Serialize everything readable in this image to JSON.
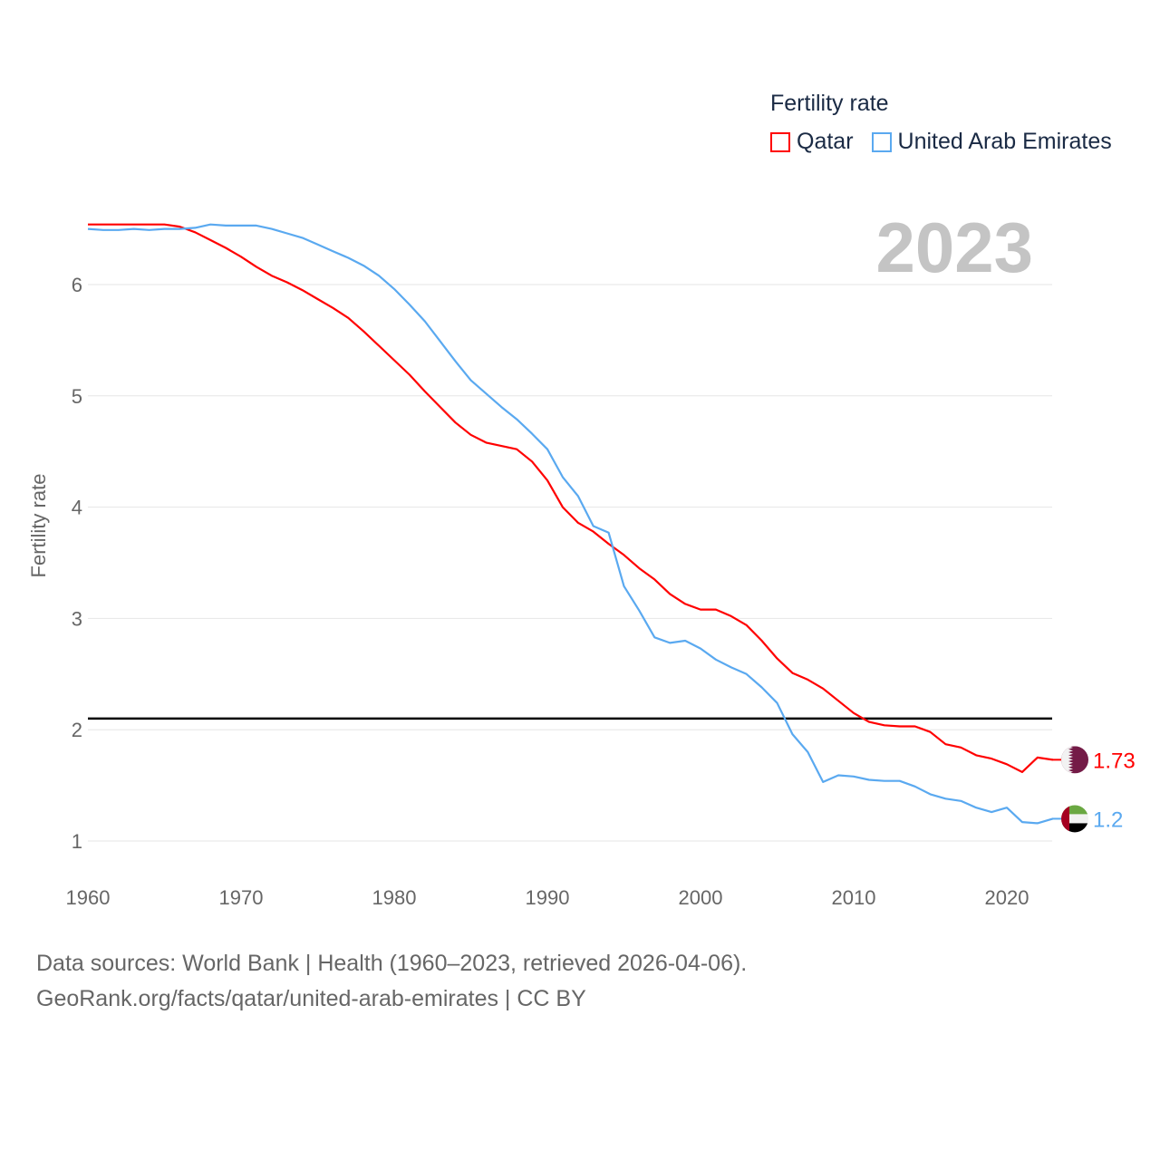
{
  "chart_data": {
    "type": "line",
    "title": "Fertility rate",
    "xlabel": "",
    "ylabel": "Fertility rate",
    "xlim": [
      1960,
      2023
    ],
    "ylim": [
      0.7,
      6.9
    ],
    "x_ticks": [
      1960,
      1970,
      1980,
      1990,
      2000,
      2010,
      2020
    ],
    "y_ticks": [
      1,
      2,
      3,
      4,
      5,
      6
    ],
    "grid": true,
    "legend_position": "top-right",
    "reference_line": 2.1,
    "current_year_label": "2023",
    "x": [
      1960,
      1961,
      1962,
      1963,
      1964,
      1965,
      1966,
      1967,
      1968,
      1969,
      1970,
      1971,
      1972,
      1973,
      1974,
      1975,
      1976,
      1977,
      1978,
      1979,
      1980,
      1981,
      1982,
      1983,
      1984,
      1985,
      1986,
      1987,
      1988,
      1989,
      1990,
      1991,
      1992,
      1993,
      1994,
      1995,
      1996,
      1997,
      1998,
      1999,
      2000,
      2001,
      2002,
      2003,
      2004,
      2005,
      2006,
      2007,
      2008,
      2009,
      2010,
      2011,
      2012,
      2013,
      2014,
      2015,
      2016,
      2017,
      2018,
      2019,
      2020,
      2021,
      2022,
      2023
    ],
    "series": [
      {
        "name": "Qatar",
        "color": "#ff0000",
        "end_label": "1.73",
        "flag": "qatar-flag",
        "values": [
          6.54,
          6.54,
          6.54,
          6.54,
          6.54,
          6.54,
          6.52,
          6.47,
          6.4,
          6.33,
          6.25,
          6.16,
          6.08,
          6.02,
          5.95,
          5.87,
          5.79,
          5.7,
          5.58,
          5.45,
          5.32,
          5.19,
          5.04,
          4.9,
          4.76,
          4.65,
          4.58,
          4.55,
          4.52,
          4.41,
          4.24,
          4.0,
          3.86,
          3.78,
          3.67,
          3.57,
          3.45,
          3.35,
          3.22,
          3.13,
          3.08,
          3.08,
          3.02,
          2.94,
          2.8,
          2.64,
          2.51,
          2.45,
          2.37,
          2.26,
          2.15,
          2.07,
          2.04,
          2.03,
          2.03,
          1.98,
          1.87,
          1.84,
          1.77,
          1.74,
          1.69,
          1.62,
          1.75,
          1.73
        ]
      },
      {
        "name": "United Arab Emirates",
        "color": "#5aa9f0",
        "end_label": "1.2",
        "flag": "uae-flag",
        "values": [
          6.5,
          6.49,
          6.49,
          6.5,
          6.49,
          6.5,
          6.5,
          6.51,
          6.54,
          6.53,
          6.53,
          6.53,
          6.5,
          6.46,
          6.42,
          6.36,
          6.3,
          6.24,
          6.17,
          6.08,
          5.96,
          5.82,
          5.67,
          5.49,
          5.31,
          5.14,
          5.02,
          4.9,
          4.79,
          4.66,
          4.52,
          4.27,
          4.1,
          3.83,
          3.77,
          3.29,
          3.07,
          2.83,
          2.78,
          2.8,
          2.73,
          2.63,
          2.56,
          2.5,
          2.38,
          2.24,
          1.96,
          1.8,
          1.53,
          1.59,
          1.58,
          1.55,
          1.54,
          1.54,
          1.49,
          1.42,
          1.38,
          1.36,
          1.3,
          1.26,
          1.3,
          1.17,
          1.16,
          1.2
        ]
      }
    ]
  },
  "footer": {
    "line1": "Data sources: World Bank | Health (1960–2023, retrieved 2026-04-06).",
    "line2": "GeoRank.org/facts/qatar/united-arab-emirates | CC BY"
  }
}
